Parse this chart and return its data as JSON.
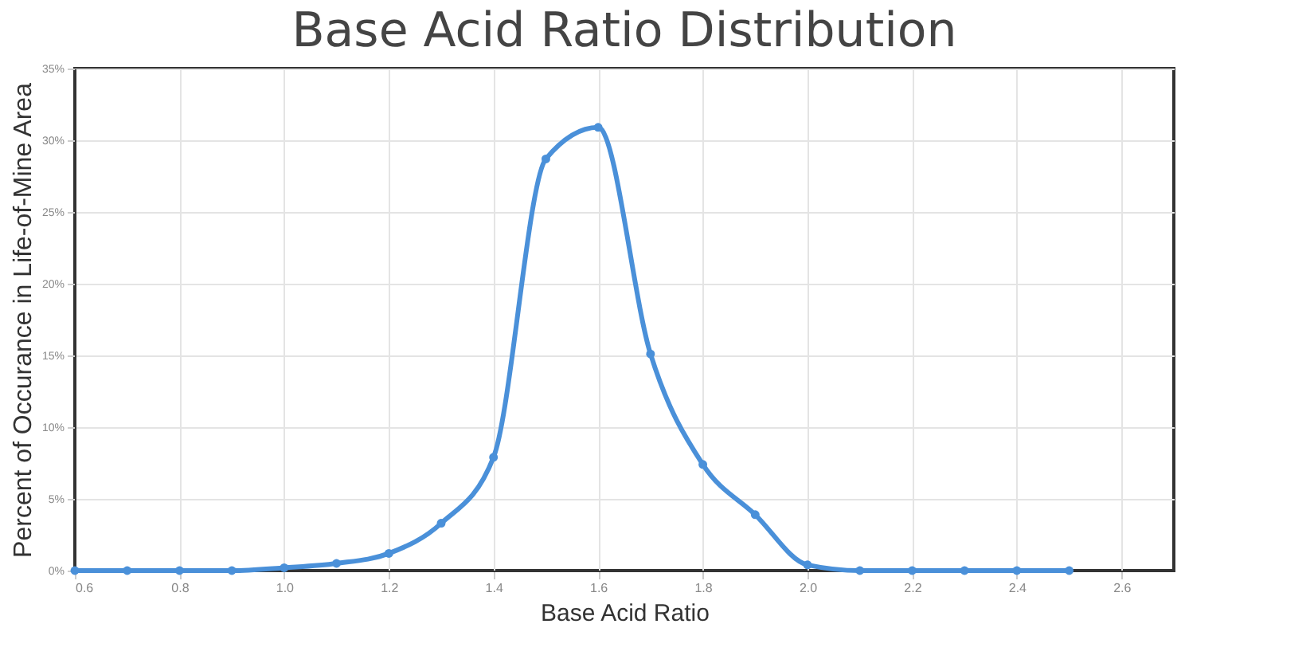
{
  "chart_data": {
    "type": "line",
    "title": "Base Acid Ratio Distribution",
    "xlabel": "Base Acid Ratio",
    "ylabel": "Percent of Occurance in Life-of-Mine Area",
    "x": [
      0.6,
      0.7,
      0.8,
      0.9,
      1.0,
      1.1,
      1.2,
      1.3,
      1.4,
      1.5,
      1.6,
      1.7,
      1.8,
      1.9,
      2.0,
      2.1,
      2.2,
      2.3,
      2.4,
      2.5
    ],
    "series": [
      {
        "color": "#4a90d9",
        "values": [
          0,
          0,
          0,
          0,
          0.2,
          0.5,
          1.2,
          3.3,
          7.9,
          28.7,
          30.9,
          15.1,
          7.4,
          3.9,
          0.4,
          0,
          0,
          0,
          0,
          0
        ]
      }
    ],
    "xlim": [
      0.6,
      2.7
    ],
    "xticks": [
      {
        "value": 0.6,
        "label": "0.6"
      },
      {
        "value": 0.8,
        "label": "0.8"
      },
      {
        "value": 1.0,
        "label": "1.0"
      },
      {
        "value": 1.2,
        "label": "1.2"
      },
      {
        "value": 1.4,
        "label": "1.4"
      },
      {
        "value": 1.6,
        "label": "1.6"
      },
      {
        "value": 1.8,
        "label": "1.8"
      },
      {
        "value": 2.0,
        "label": "2.0"
      },
      {
        "value": 2.2,
        "label": "2.2"
      },
      {
        "value": 2.4,
        "label": "2.4"
      },
      {
        "value": 2.6,
        "label": "2.6"
      }
    ],
    "ylim": [
      0,
      35
    ],
    "yticks": [
      {
        "value": 0,
        "label": "0%"
      },
      {
        "value": 5,
        "label": "5%"
      },
      {
        "value": 10,
        "label": "10%"
      },
      {
        "value": 15,
        "label": "15%"
      },
      {
        "value": 20,
        "label": "20%"
      },
      {
        "value": 25,
        "label": "25%"
      },
      {
        "value": 30,
        "label": "30%"
      },
      {
        "value": 35,
        "label": "35%"
      }
    ],
    "grid": true,
    "marker": "circle",
    "line_style": "solid"
  }
}
